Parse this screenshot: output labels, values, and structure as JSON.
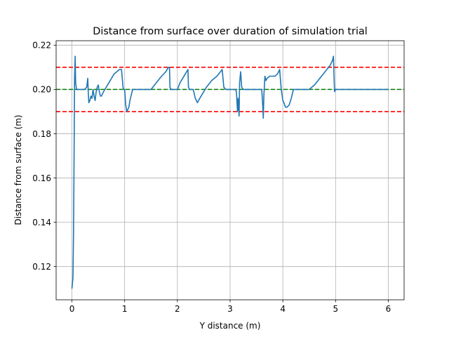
{
  "chart_data": {
    "type": "line",
    "title": "Distance from surface over duration of simulation trial",
    "xlabel": "Y distance (m)",
    "ylabel": "Distance from surface (m)",
    "xlim": [
      -0.3,
      6.3
    ],
    "ylim": [
      0.105,
      0.222
    ],
    "xticks": [
      0,
      1,
      2,
      3,
      4,
      5,
      6
    ],
    "yticks": [
      0.12,
      0.14,
      0.16,
      0.18,
      0.2,
      0.22
    ],
    "xtick_labels": [
      "0",
      "1",
      "2",
      "3",
      "4",
      "5",
      "6"
    ],
    "ytick_labels": [
      "0.12",
      "0.14",
      "0.16",
      "0.18",
      "0.20",
      "0.22"
    ],
    "grid": true,
    "reference_lines": [
      {
        "y": 0.21,
        "color": "#ff0000",
        "style": "dashed"
      },
      {
        "y": 0.2,
        "color": "#008000",
        "style": "dashed"
      },
      {
        "y": 0.19,
        "color": "#ff0000",
        "style": "dashed"
      }
    ],
    "series": [
      {
        "color": "#1f77b4",
        "x": [
          0.0,
          0.02,
          0.03,
          0.04,
          0.05,
          0.06,
          0.07,
          0.08,
          0.09,
          0.11,
          0.15,
          0.2,
          0.24,
          0.28,
          0.3,
          0.31,
          0.32,
          0.34,
          0.36,
          0.38,
          0.4,
          0.42,
          0.44,
          0.46,
          0.48,
          0.5,
          0.52,
          0.54,
          0.56,
          0.6,
          0.65,
          0.7,
          0.75,
          0.8,
          0.85,
          0.9,
          0.94,
          0.97,
          0.98,
          1.0,
          1.02,
          1.04,
          1.06,
          1.08,
          1.1,
          1.13,
          1.15,
          1.18,
          1.22,
          1.25,
          1.3,
          1.4,
          1.5,
          1.6,
          1.7,
          1.78,
          1.83,
          1.85,
          1.86,
          1.88,
          1.92,
          1.96,
          2.0,
          2.05,
          2.1,
          2.15,
          2.2,
          2.21,
          2.23,
          2.26,
          2.3,
          2.34,
          2.38,
          2.4,
          2.45,
          2.55,
          2.65,
          2.75,
          2.85,
          2.88,
          2.92,
          2.96,
          3.0,
          3.05,
          3.08,
          3.1,
          3.12,
          3.14,
          3.15,
          3.17,
          3.18,
          3.2,
          3.22,
          3.25,
          3.3,
          3.36,
          3.42,
          3.46,
          3.5,
          3.55,
          3.6,
          3.62,
          3.63,
          3.64,
          3.66,
          3.68,
          3.7,
          3.75,
          3.8,
          3.85,
          3.9,
          3.94,
          3.97,
          4.0,
          4.02,
          4.05,
          4.08,
          4.12,
          4.16,
          4.2,
          4.25,
          4.3,
          4.4,
          4.5,
          4.6,
          4.7,
          4.8,
          4.9,
          4.94,
          4.96,
          4.98,
          5.0,
          5.05,
          5.2,
          5.5,
          5.8,
          6.0
        ],
        "values": [
          0.11,
          0.115,
          0.135,
          0.17,
          0.205,
          0.215,
          0.203,
          0.201,
          0.2,
          0.2,
          0.2,
          0.2,
          0.2,
          0.201,
          0.205,
          0.199,
          0.194,
          0.195,
          0.197,
          0.196,
          0.2,
          0.197,
          0.195,
          0.199,
          0.201,
          0.202,
          0.199,
          0.197,
          0.197,
          0.199,
          0.201,
          0.203,
          0.205,
          0.207,
          0.208,
          0.209,
          0.209,
          0.201,
          0.2,
          0.2,
          0.193,
          0.19,
          0.191,
          0.192,
          0.195,
          0.198,
          0.2,
          0.2,
          0.2,
          0.2,
          0.2,
          0.2,
          0.2,
          0.203,
          0.206,
          0.208,
          0.21,
          0.21,
          0.201,
          0.2,
          0.2,
          0.2,
          0.2,
          0.203,
          0.205,
          0.207,
          0.209,
          0.201,
          0.2,
          0.2,
          0.2,
          0.196,
          0.194,
          0.195,
          0.197,
          0.201,
          0.204,
          0.206,
          0.209,
          0.201,
          0.2,
          0.2,
          0.2,
          0.2,
          0.2,
          0.2,
          0.199,
          0.19,
          0.196,
          0.188,
          0.203,
          0.208,
          0.201,
          0.2,
          0.2,
          0.2,
          0.2,
          0.2,
          0.2,
          0.2,
          0.2,
          0.192,
          0.187,
          0.197,
          0.206,
          0.204,
          0.205,
          0.206,
          0.206,
          0.206,
          0.207,
          0.209,
          0.2,
          0.195,
          0.194,
          0.192,
          0.192,
          0.193,
          0.196,
          0.2,
          0.2,
          0.2,
          0.2,
          0.2,
          0.202,
          0.205,
          0.208,
          0.211,
          0.213,
          0.215,
          0.199,
          0.2,
          0.2,
          0.2,
          0.2,
          0.2,
          0.2
        ]
      }
    ]
  }
}
